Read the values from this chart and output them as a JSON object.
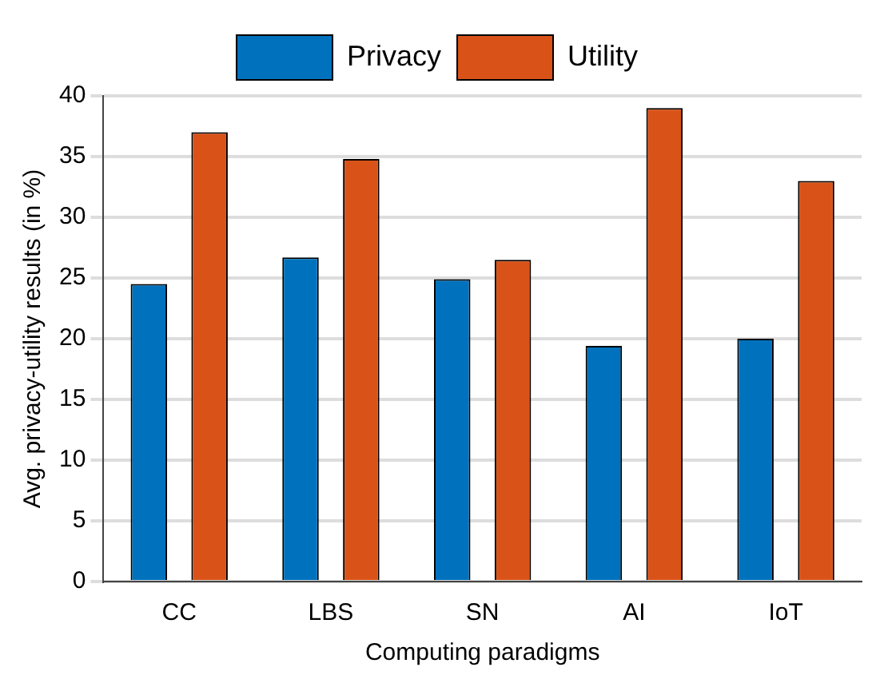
{
  "chart_data": {
    "type": "bar",
    "xlabel": "Computing paradigms",
    "ylabel": "Avg. privacy-utility results (in %)",
    "categories": [
      "CC",
      "LBS",
      "SN",
      "AI",
      "IoT"
    ],
    "series": [
      {
        "name": "Privacy",
        "color": "#0072bd",
        "values": [
          24.5,
          26.7,
          24.9,
          19.4,
          20
        ]
      },
      {
        "name": "Utility",
        "color": "#d95319",
        "values": [
          37,
          34.8,
          26.5,
          39,
          33
        ]
      }
    ],
    "ylim": [
      0,
      40
    ],
    "yticks": [
      0,
      5,
      10,
      15,
      20,
      25,
      30,
      35,
      40
    ],
    "grid": "y",
    "legend": "top"
  }
}
